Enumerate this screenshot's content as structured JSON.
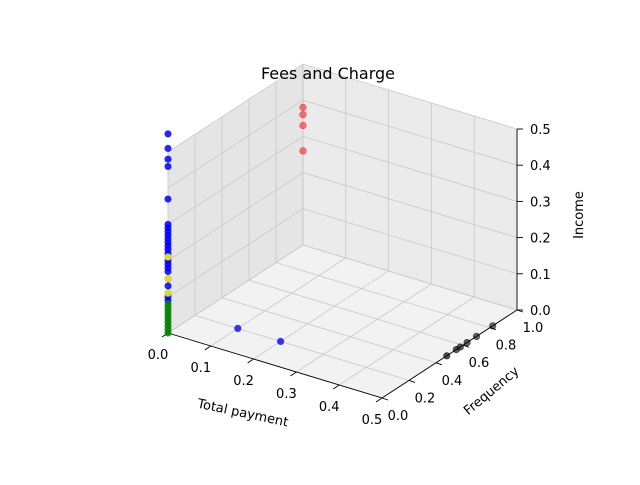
{
  "chart_data": {
    "type": "scatter3d",
    "title": "Fees and Charge",
    "xlabel": "Total payment",
    "ylabel": "Frequency",
    "zlabel": "Income",
    "xlim": [
      0.0,
      0.5
    ],
    "ylim": [
      0.0,
      1.0
    ],
    "zlim": [
      0.0,
      0.5
    ],
    "xticks": [
      "0.0",
      "0.1",
      "0.2",
      "0.3",
      "0.4",
      "0.5"
    ],
    "yticks": [
      "0.0",
      "0.2",
      "0.4",
      "0.6",
      "0.8",
      "1.0"
    ],
    "zticks": [
      "0.0",
      "0.1",
      "0.2",
      "0.3",
      "0.4",
      "0.5"
    ],
    "grid": true,
    "series": [
      {
        "color": "#0000ff",
        "points": [
          [
            0.0,
            0.0,
            0.55
          ],
          [
            0.0,
            0.0,
            0.51
          ],
          [
            0.0,
            0.0,
            0.48
          ],
          [
            0.0,
            0.0,
            0.46
          ],
          [
            0.0,
            0.0,
            0.37
          ],
          [
            0.0,
            0.0,
            0.3
          ],
          [
            0.0,
            0.0,
            0.29
          ],
          [
            0.0,
            0.0,
            0.28
          ],
          [
            0.0,
            0.0,
            0.27
          ],
          [
            0.0,
            0.0,
            0.26
          ],
          [
            0.0,
            0.0,
            0.25
          ],
          [
            0.0,
            0.0,
            0.24
          ],
          [
            0.0,
            0.0,
            0.23
          ],
          [
            0.0,
            0.0,
            0.22
          ],
          [
            0.0,
            0.0,
            0.21
          ],
          [
            0.0,
            0.0,
            0.2
          ],
          [
            0.0,
            0.0,
            0.19
          ],
          [
            0.0,
            0.0,
            0.18
          ],
          [
            0.0,
            0.0,
            0.17
          ],
          [
            0.0,
            0.0,
            0.15
          ],
          [
            0.0,
            0.0,
            0.13
          ],
          [
            0.0,
            0.0,
            0.11
          ],
          [
            0.0,
            0.0,
            0.1
          ],
          [
            0.0,
            0.0,
            0.09
          ],
          [
            0.1,
            0.2,
            0.0
          ],
          [
            0.2,
            0.2,
            0.0
          ]
        ]
      },
      {
        "color": "#ffff00",
        "points": [
          [
            0.0,
            0.0,
            0.21
          ],
          [
            0.0,
            0.0,
            0.15
          ],
          [
            0.0,
            0.0,
            0.11
          ]
        ]
      },
      {
        "color": "#008000",
        "points": [
          [
            0.0,
            0.0,
            0.08
          ],
          [
            0.0,
            0.0,
            0.07
          ],
          [
            0.0,
            0.0,
            0.06
          ],
          [
            0.0,
            0.0,
            0.05
          ],
          [
            0.0,
            0.0,
            0.04
          ],
          [
            0.0,
            0.0,
            0.03
          ],
          [
            0.0,
            0.0,
            0.02
          ],
          [
            0.0,
            0.0,
            0.01
          ],
          [
            0.0,
            0.0,
            0.0
          ]
        ]
      },
      {
        "color": "#ff0000",
        "points": [
          [
            0.0,
            1.0,
            0.38
          ],
          [
            0.0,
            1.0,
            0.36
          ],
          [
            0.0,
            1.0,
            0.33
          ],
          [
            0.0,
            1.0,
            0.26
          ]
        ]
      },
      {
        "color": "#000000",
        "points": [
          [
            0.5,
            0.48,
            0.0
          ],
          [
            0.5,
            0.55,
            0.0
          ],
          [
            0.5,
            0.58,
            0.0
          ],
          [
            0.5,
            0.63,
            0.0
          ],
          [
            0.5,
            0.7,
            0.0
          ],
          [
            0.5,
            0.82,
            0.0
          ]
        ]
      }
    ]
  }
}
